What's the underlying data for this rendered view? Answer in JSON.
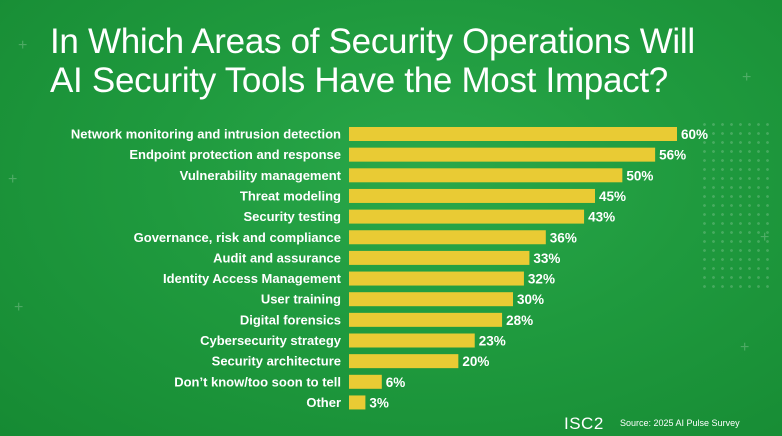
{
  "title_line1": "In Which Areas of Security Operations Will",
  "title_line2": "AI Security Tools Have the Most Impact?",
  "logo": "ISC2",
  "source": "Source: 2025 AI Pulse Survey",
  "colors": {
    "background": "#1f9a3e",
    "bar": "#e9cb34",
    "text": "#ffffff"
  },
  "chart_data": {
    "type": "bar",
    "orientation": "horizontal",
    "categories": [
      "Network monitoring and intrusion detection",
      "Endpoint protection and response",
      "Vulnerability management",
      "Threat modeling",
      "Security testing",
      "Governance, risk and compliance",
      "Audit and assurance",
      "Identity Access Management",
      "User training",
      "Digital forensics",
      "Cybersecurity strategy",
      "Security architecture",
      "Don’t know/too soon to tell",
      "Other"
    ],
    "values": [
      60,
      56,
      50,
      45,
      43,
      36,
      33,
      32,
      30,
      28,
      23,
      20,
      6,
      3
    ],
    "value_labels": [
      "60%",
      "56%",
      "50%",
      "45%",
      "43%",
      "36%",
      "33%",
      "32%",
      "30%",
      "28%",
      "23%",
      "20%",
      "6%",
      "3%"
    ],
    "unit": "%",
    "xlim": [
      0,
      60
    ],
    "grid": false,
    "legend": "none"
  }
}
